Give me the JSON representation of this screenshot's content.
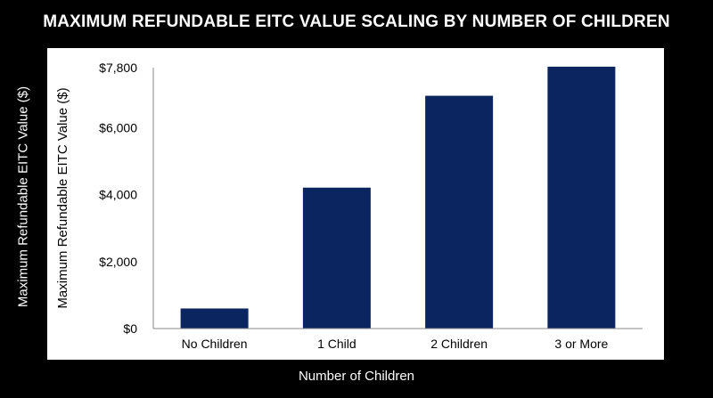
{
  "title": "MAXIMUM REFUNDABLE EITC VALUE SCALING BY NUMBER OF CHILDREN",
  "outer_ylabel": "Maximum Refundable EITC Value ($)",
  "outer_xlabel": "Number of Children",
  "colors": {
    "background": "#000000",
    "panel": "#ffffff",
    "bar": "#0b2560",
    "text": "#000000"
  },
  "chart_data": {
    "type": "bar",
    "categories": [
      "No Children",
      "1 Child",
      "2 Children",
      "3 or More"
    ],
    "values": [
      600,
      4213,
      6960,
      7830
    ],
    "ylabel": "Maximum Refundable EITC Value ($)",
    "xlabel": "",
    "ylim": [
      0,
      7800
    ],
    "yticks": [
      0,
      2000,
      4000,
      6000,
      7800
    ],
    "ytick_labels": [
      "$0",
      "$2,000",
      "$4,000",
      "$6,000",
      "$7,800"
    ],
    "grid": false,
    "legend": "none"
  }
}
